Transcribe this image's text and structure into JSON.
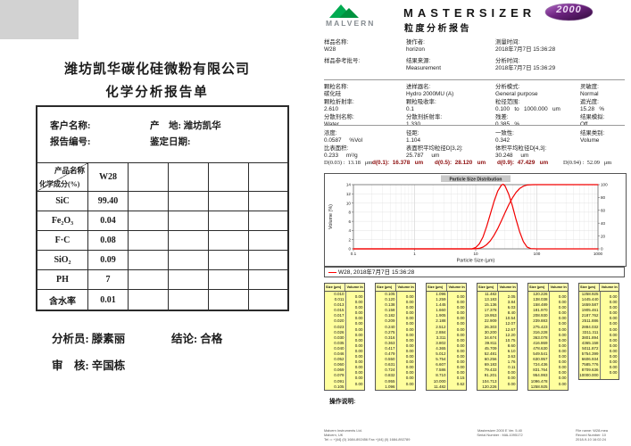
{
  "chem_report": {
    "company": "潍坊凯华碳化硅微粉有限公司",
    "title": "化学分析报告单",
    "info": {
      "customer_label": "客户名称:",
      "origin_label": "产    地: ",
      "origin_value": "潍坊凯华",
      "report_no_label": "报告编号:",
      "date_label": "鉴定日期:"
    },
    "table": {
      "corner_top": "产品名称",
      "corner_bottom": "化学成分(%)",
      "product_name": "W28",
      "empty_columns": 4,
      "rows": [
        {
          "component": "SiC",
          "value": "99.40"
        },
        {
          "component": "Fe₂O₃",
          "value": "0.04"
        },
        {
          "component": "F·C",
          "value": "0.08"
        },
        {
          "component": "SiO₂",
          "value": "0.09"
        },
        {
          "component": "PH",
          "value": "7"
        },
        {
          "component": "含水率",
          "value": "0.01"
        }
      ]
    },
    "signoff": {
      "analyst_label": "分析员: ",
      "analyst": "滕素丽",
      "conclusion_label": "结论: ",
      "conclusion": "合格",
      "reviewer_label": "审    核: ",
      "reviewer": "辛国栋"
    }
  },
  "psa_report": {
    "brand": {
      "logo_text": "MALVERN",
      "product": "MASTERSIZER",
      "badge": "2000",
      "report_title": "粒度分析报告"
    },
    "sample_info": [
      {
        "label": "样品名称:",
        "value": "W28"
      },
      {
        "label": "操作者:",
        "value": "horizon"
      },
      {
        "label": "测量时间:",
        "value": "2018年7月7日 15:36:28"
      },
      {
        "label": "样品参考批号:",
        "value": ""
      },
      {
        "label": "结果来源:",
        "value": "Measurement"
      },
      {
        "label": "分析时间:",
        "value": "2018年7月7日 15:36:29"
      }
    ],
    "measurement_info": [
      {
        "label": "颗粒名称:",
        "value": "碳化硅"
      },
      {
        "label": "进样器名:",
        "value": "Hydro 2000MU (A)"
      },
      {
        "label": "分析模式:",
        "value": "General purpose"
      },
      {
        "label": "灵敏度:",
        "value": "Normal"
      },
      {
        "label": "颗粒折射率:",
        "value": "2.610"
      },
      {
        "label": "颗粒吸收率:",
        "value": "0.1"
      },
      {
        "label": "粒径范围:",
        "value": "0.100   to   1000.000   um"
      },
      {
        "label": "遮光度:",
        "value": "15.28   %"
      },
      {
        "label": "分散剂名称:",
        "value": "Water"
      },
      {
        "label": "分散剂折射率:",
        "value": "1.330"
      },
      {
        "label": "残差:",
        "value": "0.385   %"
      },
      {
        "label": "结果模拟:",
        "value": "Off"
      }
    ],
    "result_summary": [
      {
        "label": "浓度:",
        "value": "0.0587     %Vol"
      },
      {
        "label": "径距:",
        "value": "1.104"
      },
      {
        "label": "一致性:",
        "value": "0.342"
      },
      {
        "label": "结果类别:",
        "value": "Volume"
      },
      {
        "label": "比表面积:",
        "value": "0.233     m²/g"
      },
      {
        "label": "表面积平均粒径D[3,2]:",
        "value": "25.787     um"
      },
      {
        "label": "体积平均粒径D[4,3]:",
        "value": "30.248     um"
      }
    ],
    "d_values": [
      {
        "label": "D(0.03) :",
        "value": "13.18",
        "unit": "μm",
        "emphasis": false
      },
      {
        "label": "d(0.1):",
        "value": "16.378",
        "unit": "um",
        "emphasis": true
      },
      {
        "label": "d(0.5):",
        "value": "28.120",
        "unit": "um",
        "emphasis": true
      },
      {
        "label": "d(0.9):",
        "value": "47.429",
        "unit": "um",
        "emphasis": true
      },
      {
        "label": "D(0.94) :",
        "value": "52.09",
        "unit": "μm",
        "emphasis": false
      }
    ],
    "legend": "W28, 2018年7月7日 15:36:28",
    "size_table": {
      "size_header": "Size (µm)",
      "volume_header": "Volume In %",
      "columns": [
        {
          "sizes": [
            "0.010",
            "0.011",
            "0.013",
            "0.015",
            "0.017",
            "0.020",
            "0.023",
            "0.026",
            "0.030",
            "0.035",
            "0.040",
            "0.046",
            "0.052",
            "0.060",
            "0.069",
            "0.079",
            "0.091",
            "0.105"
          ],
          "volumes": [
            "0.00",
            "0.00",
            "0.00",
            "0.00",
            "0.00",
            "0.00",
            "0.00",
            "0.00",
            "0.00",
            "0.00",
            "0.00",
            "0.00",
            "0.00",
            "0.00",
            "0.00",
            "0.00",
            "0.00"
          ]
        },
        {
          "sizes": [
            "0.105",
            "0.120",
            "0.138",
            "0.158",
            "0.182",
            "0.209",
            "0.240",
            "0.275",
            "0.316",
            "0.363",
            "0.417",
            "0.479",
            "0.550",
            "0.631",
            "0.724",
            "0.832",
            "0.955",
            "1.096"
          ],
          "volumes": [
            "0.00",
            "0.00",
            "0.00",
            "0.00",
            "0.00",
            "0.00",
            "0.00",
            "0.00",
            "0.00",
            "0.00",
            "0.00",
            "0.00",
            "0.00",
            "0.00",
            "0.00",
            "0.00",
            "0.00"
          ]
        },
        {
          "sizes": [
            "1.096",
            "1.259",
            "1.445",
            "1.660",
            "1.905",
            "2.188",
            "2.512",
            "2.884",
            "3.311",
            "3.802",
            "4.365",
            "5.012",
            "5.754",
            "6.607",
            "7.586",
            "8.710",
            "10.000",
            "11.482"
          ],
          "volumes": [
            "0.00",
            "0.00",
            "0.00",
            "0.00",
            "0.00",
            "0.00",
            "0.00",
            "0.00",
            "0.00",
            "0.00",
            "0.00",
            "0.00",
            "0.00",
            "0.00",
            "0.00",
            "0.15",
            "0.62"
          ]
        },
        {
          "sizes": [
            "11.482",
            "13.183",
            "15.136",
            "17.378",
            "19.953",
            "22.909",
            "26.303",
            "30.200",
            "34.674",
            "39.811",
            "45.709",
            "52.481",
            "60.256",
            "69.183",
            "79.433",
            "91.201",
            "104.713",
            "120.226"
          ],
          "volumes": [
            "2.05",
            "3.84",
            "6.03",
            "8.40",
            "10.54",
            "12.07",
            "12.67",
            "12.20",
            "10.75",
            "8.60",
            "6.10",
            "3.63",
            "1.76",
            "0.11",
            "0.00",
            "0.00",
            "0.00"
          ]
        },
        {
          "sizes": [
            "120.226",
            "138.038",
            "158.489",
            "181.970",
            "208.930",
            "239.883",
            "275.423",
            "316.228",
            "363.078",
            "416.869",
            "478.630",
            "549.541",
            "630.957",
            "724.436",
            "831.764",
            "954.993",
            "1096.478",
            "1258.925"
          ],
          "volumes": [
            "0.00",
            "0.00",
            "0.00",
            "0.00",
            "0.00",
            "0.00",
            "0.00",
            "0.00",
            "0.00",
            "0.00",
            "0.00",
            "0.00",
            "0.00",
            "0.00",
            "0.00",
            "0.00",
            "0.00"
          ]
        },
        {
          "sizes": [
            "1258.925",
            "1445.440",
            "1659.587",
            "1905.461",
            "2187.762",
            "2511.886",
            "2884.032",
            "3311.311",
            "3801.894",
            "4365.158",
            "5011.872",
            "5754.399",
            "6606.934",
            "7585.776",
            "8709.636",
            "10000.000"
          ],
          "volumes": [
            "0.00",
            "0.00",
            "0.00",
            "0.00",
            "0.00",
            "0.00",
            "0.00",
            "0.00",
            "0.00",
            "0.00",
            "0.00",
            "0.00",
            "0.00",
            "0.00",
            "0.00"
          ]
        }
      ]
    },
    "operation_label": "操作说明:",
    "page_footer": {
      "left_lines": [
        "Malvern Instruments Ltd.",
        "Malvern, UK",
        "Tel := +[44] (0) 1684-892456 Fax +[44] (0) 1684-892789"
      ],
      "center_lines": [
        "Mastersizer 2000 E Ver. 5.40",
        "Serial Number : MAL1095172"
      ],
      "right_lines": [
        "File name: W28.mea",
        "Record Number: 10",
        "2018-9-10 16:02:24"
      ]
    }
  },
  "chart_data": {
    "type": "line",
    "title": "Particle Size Distribution",
    "xlabel": "Particle Size (µm)",
    "ylabel": "Volume (%)",
    "x_scale": "log",
    "xlim": [
      0.1,
      1000
    ],
    "ylim_left": [
      0,
      14
    ],
    "ylim_right": [
      0,
      100
    ],
    "x_ticks": [
      "0.1",
      "1",
      "10",
      "100",
      "1000"
    ],
    "left_ticks": [
      0,
      2,
      4,
      6,
      8,
      10,
      12,
      14
    ],
    "right_ticks": [
      0,
      20,
      40,
      60,
      80,
      100
    ],
    "grid": true,
    "line_color": "#f20000",
    "series": [
      {
        "name": "frequency",
        "axis": "left",
        "points": [
          [
            0.1,
            0
          ],
          [
            8.71,
            0
          ],
          [
            10,
            0.3
          ],
          [
            11.48,
            1.1
          ],
          [
            13.18,
            2.6
          ],
          [
            15.14,
            4.9
          ],
          [
            17.38,
            7.6
          ],
          [
            19.95,
            10.3
          ],
          [
            22.91,
            12.6
          ],
          [
            26.3,
            13.9
          ],
          [
            28.1,
            14.1
          ],
          [
            30.2,
            13.7
          ],
          [
            34.67,
            11.9
          ],
          [
            39.81,
            9.4
          ],
          [
            45.71,
            6.4
          ],
          [
            52.48,
            3.7
          ],
          [
            60.26,
            1.6
          ],
          [
            69.18,
            0.4
          ],
          [
            79.43,
            0.05
          ],
          [
            100,
            0
          ],
          [
            1000,
            0
          ]
        ]
      },
      {
        "name": "cumulative",
        "axis": "right",
        "points": [
          [
            0.1,
            0
          ],
          [
            8.71,
            0
          ],
          [
            10,
            0.15
          ],
          [
            11.48,
            0.77
          ],
          [
            13.18,
            2.82
          ],
          [
            15.14,
            6.66
          ],
          [
            17.38,
            12.69
          ],
          [
            19.95,
            21.09
          ],
          [
            22.91,
            31.63
          ],
          [
            26.3,
            43.7
          ],
          [
            30.2,
            56.37
          ],
          [
            34.67,
            68.57
          ],
          [
            39.81,
            79.32
          ],
          [
            45.71,
            87.92
          ],
          [
            52.48,
            94.02
          ],
          [
            60.26,
            97.65
          ],
          [
            69.18,
            99.41
          ],
          [
            79.43,
            99.9
          ],
          [
            90,
            100
          ],
          [
            1000,
            100
          ]
        ]
      }
    ]
  }
}
